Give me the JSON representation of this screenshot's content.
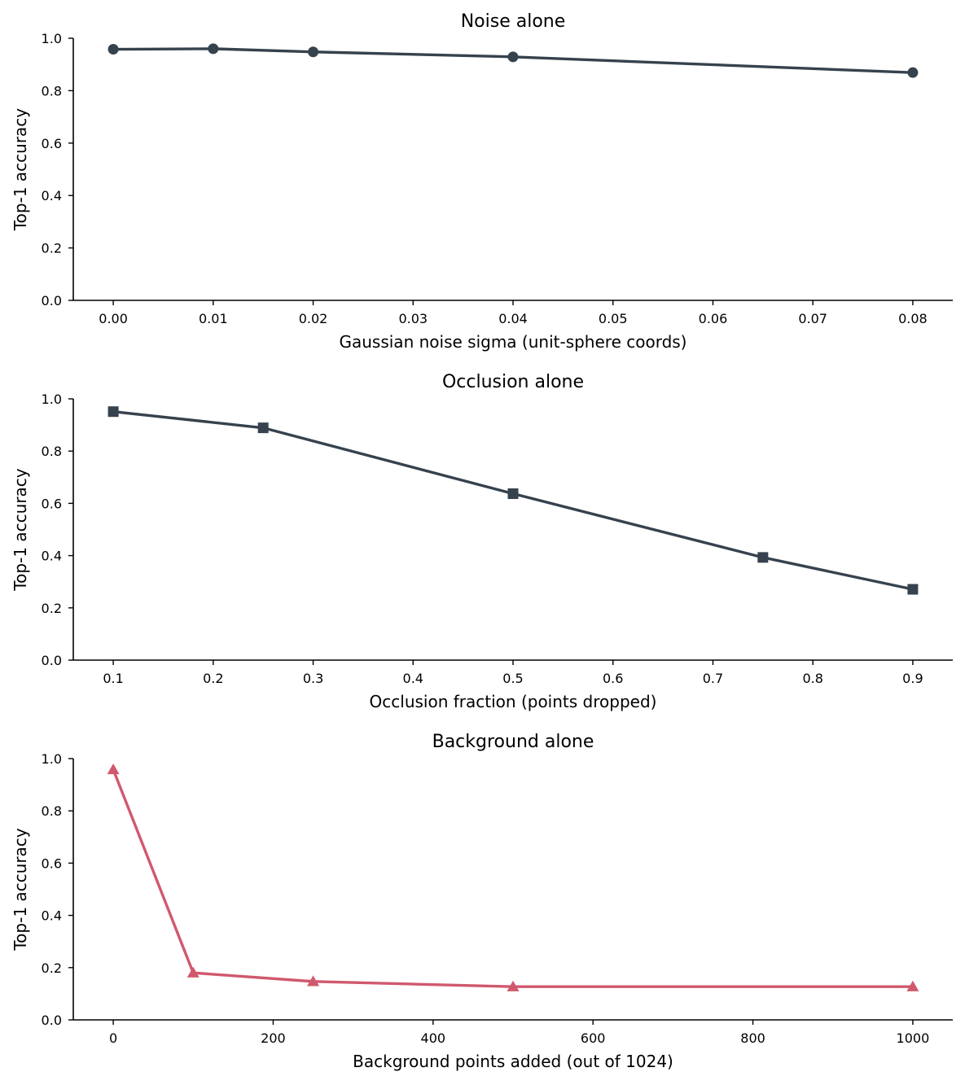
{
  "chart_data": [
    {
      "type": "line",
      "title": "Noise alone",
      "xlabel": "Gaussian noise sigma (unit-sphere coords)",
      "ylabel": "Top-1 accuracy",
      "x": [
        0.0,
        0.01,
        0.02,
        0.04,
        0.08
      ],
      "series": [
        {
          "values": [
            0.958,
            0.96,
            0.948,
            0.929,
            0.869
          ],
          "marker": "circle",
          "color": "#36424d"
        }
      ],
      "xlim": [
        -0.004,
        0.084
      ],
      "ylim": [
        0.0,
        1.0
      ],
      "xticks": [
        0.0,
        0.01,
        0.02,
        0.03,
        0.04,
        0.05,
        0.06,
        0.07,
        0.08
      ],
      "xtick_labels": [
        "0.00",
        "0.01",
        "0.02",
        "0.03",
        "0.04",
        "0.05",
        "0.06",
        "0.07",
        "0.08"
      ],
      "yticks": [
        0.0,
        0.2,
        0.4,
        0.6,
        0.8,
        1.0
      ],
      "ytick_labels": [
        "0.0",
        "0.2",
        "0.4",
        "0.6",
        "0.8",
        "1.0"
      ],
      "grid": false,
      "legend": "none"
    },
    {
      "type": "line",
      "title": "Occlusion alone",
      "xlabel": "Occlusion fraction (points dropped)",
      "ylabel": "Top-1 accuracy",
      "x": [
        0.1,
        0.25,
        0.5,
        0.75,
        0.9
      ],
      "series": [
        {
          "values": [
            0.951,
            0.889,
            0.637,
            0.393,
            0.271
          ],
          "marker": "square",
          "color": "#36424d"
        }
      ],
      "xlim": [
        0.06,
        0.94
      ],
      "ylim": [
        0.0,
        1.0
      ],
      "xticks": [
        0.1,
        0.2,
        0.3,
        0.4,
        0.5,
        0.6,
        0.7,
        0.8,
        0.9
      ],
      "xtick_labels": [
        "0.1",
        "0.2",
        "0.3",
        "0.4",
        "0.5",
        "0.6",
        "0.7",
        "0.8",
        "0.9"
      ],
      "yticks": [
        0.0,
        0.2,
        0.4,
        0.6,
        0.8,
        1.0
      ],
      "ytick_labels": [
        "0.0",
        "0.2",
        "0.4",
        "0.6",
        "0.8",
        "1.0"
      ],
      "grid": false,
      "legend": "none"
    },
    {
      "type": "line",
      "title": "Background alone",
      "xlabel": "Background points added (out of 1024)",
      "ylabel": "Top-1 accuracy",
      "x": [
        0,
        100,
        250,
        500,
        1000
      ],
      "series": [
        {
          "values": [
            0.958,
            0.18,
            0.147,
            0.127,
            0.127
          ],
          "marker": "triangle",
          "color": "#d0596e"
        }
      ],
      "xlim": [
        -50,
        1050
      ],
      "ylim": [
        0.0,
        1.0
      ],
      "xticks": [
        0,
        200,
        400,
        600,
        800,
        1000
      ],
      "xtick_labels": [
        "0",
        "200",
        "400",
        "600",
        "800",
        "1000"
      ],
      "yticks": [
        0.0,
        0.2,
        0.4,
        0.6,
        0.8,
        1.0
      ],
      "ytick_labels": [
        "0.0",
        "0.2",
        "0.4",
        "0.6",
        "0.8",
        "1.0"
      ],
      "grid": false,
      "legend": "none"
    }
  ]
}
